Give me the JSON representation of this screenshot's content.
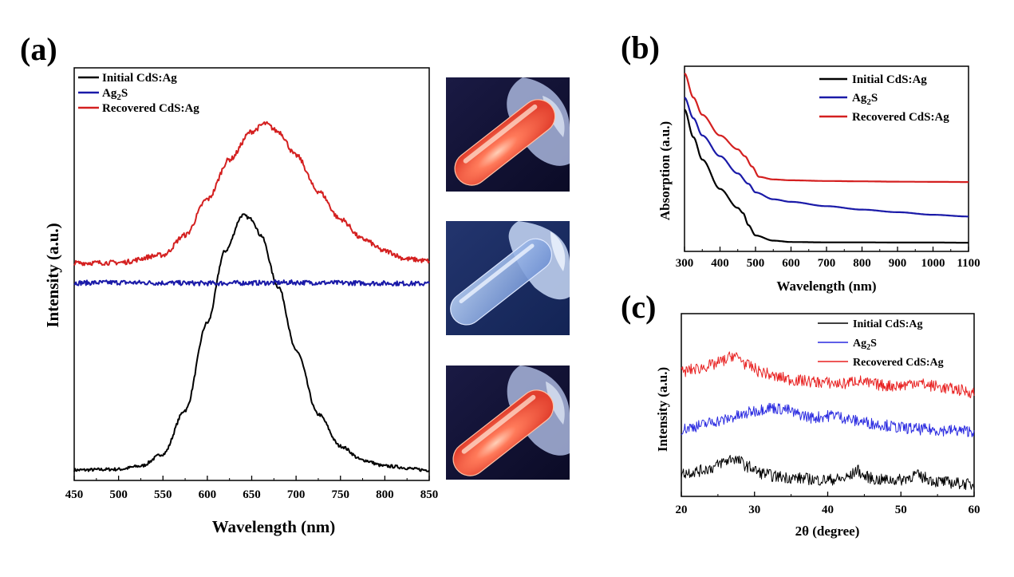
{
  "colors": {
    "initial": "#000000",
    "ag2s": "#1a1aa8",
    "recovered": "#d42020",
    "ag2s_c": "#2a2ae0",
    "recovered_c": "#e82020"
  },
  "chart_data": [
    {
      "panel": "(a)",
      "type": "line",
      "title": "",
      "xlabel": "Wavelength (nm)",
      "ylabel": "Intensity (a.u.)",
      "xlim": [
        450,
        850
      ],
      "ylim": [
        0,
        1
      ],
      "x_ticks": [
        450,
        500,
        550,
        600,
        650,
        700,
        750,
        800,
        850
      ],
      "y_ticks": [],
      "legend": {
        "position": "top-left",
        "entries": [
          "Initial CdS:Ag",
          "Ag2S",
          "Recovered CdS:Ag"
        ]
      },
      "series": [
        {
          "name": "Initial CdS:Ag",
          "x": [
            450,
            500,
            525,
            550,
            575,
            600,
            620,
            640,
            650,
            660,
            680,
            700,
            725,
            750,
            775,
            800,
            850
          ],
          "y": [
            0.01,
            0.012,
            0.02,
            0.05,
            0.16,
            0.38,
            0.56,
            0.65,
            0.64,
            0.6,
            0.47,
            0.31,
            0.15,
            0.07,
            0.035,
            0.02,
            0.01
          ]
        },
        {
          "name": "Ag2S",
          "x": [
            450,
            500,
            550,
            600,
            650,
            700,
            750,
            800,
            850
          ],
          "y": [
            0.48,
            0.481,
            0.48,
            0.479,
            0.48,
            0.481,
            0.48,
            0.479,
            0.478
          ]
        },
        {
          "name": "Recovered CdS:Ag",
          "x": [
            450,
            500,
            550,
            575,
            600,
            625,
            650,
            665,
            680,
            700,
            725,
            750,
            775,
            800,
            825,
            850
          ],
          "y": [
            0.53,
            0.531,
            0.55,
            0.6,
            0.69,
            0.79,
            0.86,
            0.88,
            0.86,
            0.8,
            0.71,
            0.64,
            0.59,
            0.56,
            0.54,
            0.535
          ]
        }
      ]
    },
    {
      "panel": "(b)",
      "type": "line",
      "title": "",
      "xlabel": "Wavelength (nm)",
      "ylabel": "Absorption (a.u.)",
      "xlim": [
        300,
        1100
      ],
      "ylim": [
        0,
        1
      ],
      "x_ticks": [
        300,
        400,
        500,
        600,
        700,
        800,
        900,
        1000,
        1100
      ],
      "y_ticks": [],
      "legend": {
        "position": "top-right",
        "entries": [
          "Initial CdS:Ag",
          "Ag2S",
          "Recovered CdS:Ag"
        ]
      },
      "series": [
        {
          "name": "Initial CdS:Ag",
          "x": [
            300,
            325,
            350,
            400,
            450,
            465,
            480,
            500,
            550,
            600,
            700,
            800,
            900,
            1000,
            1100
          ],
          "y": [
            0.79,
            0.63,
            0.5,
            0.33,
            0.22,
            0.19,
            0.12,
            0.06,
            0.03,
            0.022,
            0.02,
            0.02,
            0.019,
            0.019,
            0.018
          ]
        },
        {
          "name": "Ag2S",
          "x": [
            300,
            325,
            350,
            400,
            450,
            480,
            500,
            550,
            600,
            700,
            800,
            900,
            1000,
            1100
          ],
          "y": [
            0.86,
            0.74,
            0.64,
            0.52,
            0.42,
            0.36,
            0.31,
            0.27,
            0.255,
            0.23,
            0.21,
            0.195,
            0.18,
            0.17
          ]
        },
        {
          "name": "Recovered CdS:Ag",
          "x": [
            300,
            325,
            350,
            400,
            450,
            470,
            490,
            510,
            550,
            600,
            700,
            800,
            900,
            1000,
            1100
          ],
          "y": [
            1.0,
            0.86,
            0.76,
            0.64,
            0.56,
            0.52,
            0.46,
            0.4,
            0.385,
            0.38,
            0.376,
            0.374,
            0.372,
            0.371,
            0.37
          ]
        }
      ]
    },
    {
      "panel": "(c)",
      "type": "line",
      "title": "",
      "xlabel": "2θ (degree)",
      "ylabel": "Intensity (a.u.)",
      "xlim": [
        20,
        60
      ],
      "ylim": [
        0,
        1
      ],
      "x_ticks": [
        20,
        30,
        40,
        50,
        60
      ],
      "y_ticks": [],
      "legend": {
        "position": "top-right",
        "entries": [
          "Initial CdS:Ag",
          "Ag2S",
          "Recovered CdS:Ag"
        ]
      },
      "series": [
        {
          "name": "Initial CdS:Ag",
          "x": [
            20,
            22,
            24,
            26,
            27,
            28,
            29,
            31,
            33,
            36,
            39,
            42,
            43,
            44,
            45,
            47,
            50,
            51,
            52,
            53,
            55,
            58,
            60
          ],
          "y": [
            0.1,
            0.11,
            0.13,
            0.17,
            0.19,
            0.17,
            0.14,
            0.1,
            0.08,
            0.07,
            0.06,
            0.065,
            0.08,
            0.12,
            0.08,
            0.06,
            0.06,
            0.075,
            0.09,
            0.075,
            0.05,
            0.04,
            0.03
          ]
        },
        {
          "name": "Ag2S",
          "x": [
            20,
            22,
            25,
            28,
            30,
            32,
            34,
            36,
            38,
            40,
            41,
            42,
            44,
            47,
            50,
            53,
            56,
            60
          ],
          "y": [
            0.36,
            0.38,
            0.41,
            0.44,
            0.47,
            0.49,
            0.48,
            0.45,
            0.43,
            0.44,
            0.45,
            0.43,
            0.41,
            0.39,
            0.37,
            0.36,
            0.355,
            0.35
          ]
        },
        {
          "name": "Recovered CdS:Ag",
          "x": [
            20,
            22,
            24,
            26,
            27,
            28,
            29,
            31,
            33,
            36,
            39,
            42,
            44,
            46,
            48,
            50,
            52,
            54,
            57,
            60
          ],
          "y": [
            0.7,
            0.72,
            0.74,
            0.77,
            0.8,
            0.78,
            0.74,
            0.7,
            0.67,
            0.65,
            0.64,
            0.63,
            0.65,
            0.63,
            0.62,
            0.62,
            0.64,
            0.62,
            0.6,
            0.58
          ]
        }
      ]
    }
  ],
  "panel_a": {
    "letter": "(a)",
    "xlabel": "Wavelength (nm)",
    "ylabel": "Intensity (a.u.)",
    "legend": [
      {
        "label": "Initial CdS:Ag",
        "sub": ""
      },
      {
        "label": "Ag",
        "sub": "2",
        "tail": "S"
      },
      {
        "label": "Recovered CdS:Ag",
        "sub": ""
      }
    ],
    "ticks": [
      "450",
      "500",
      "550",
      "600",
      "650",
      "700",
      "750",
      "800",
      "850"
    ]
  },
  "panel_b": {
    "letter": "(b)",
    "xlabel": "Wavelength (nm)",
    "ylabel": "Absorption (a.u.)",
    "legend": [
      {
        "label": "Initial CdS:Ag"
      },
      {
        "label": "Ag",
        "sub": "2",
        "tail": "S"
      },
      {
        "label": "Recovered CdS:Ag"
      }
    ],
    "ticks": [
      "300",
      "400",
      "500",
      "600",
      "700",
      "800",
      "900",
      "1000",
      "1100"
    ]
  },
  "panel_c": {
    "letter": "(c)",
    "xlabel": "2θ (degree)",
    "ylabel": "Intensity (a.u.)",
    "legend": [
      {
        "label": "Initial CdS:Ag"
      },
      {
        "label": "Ag",
        "sub": "2",
        "tail": "S"
      },
      {
        "label": "Recovered CdS:Ag"
      }
    ],
    "ticks": [
      "20",
      "30",
      "40",
      "50",
      "60"
    ]
  },
  "photos": [
    {
      "name": "initial-sample",
      "glow": "red-emission"
    },
    {
      "name": "ag2s-sample",
      "glow": "no-emission"
    },
    {
      "name": "recovered-sample",
      "glow": "red-emission"
    }
  ]
}
